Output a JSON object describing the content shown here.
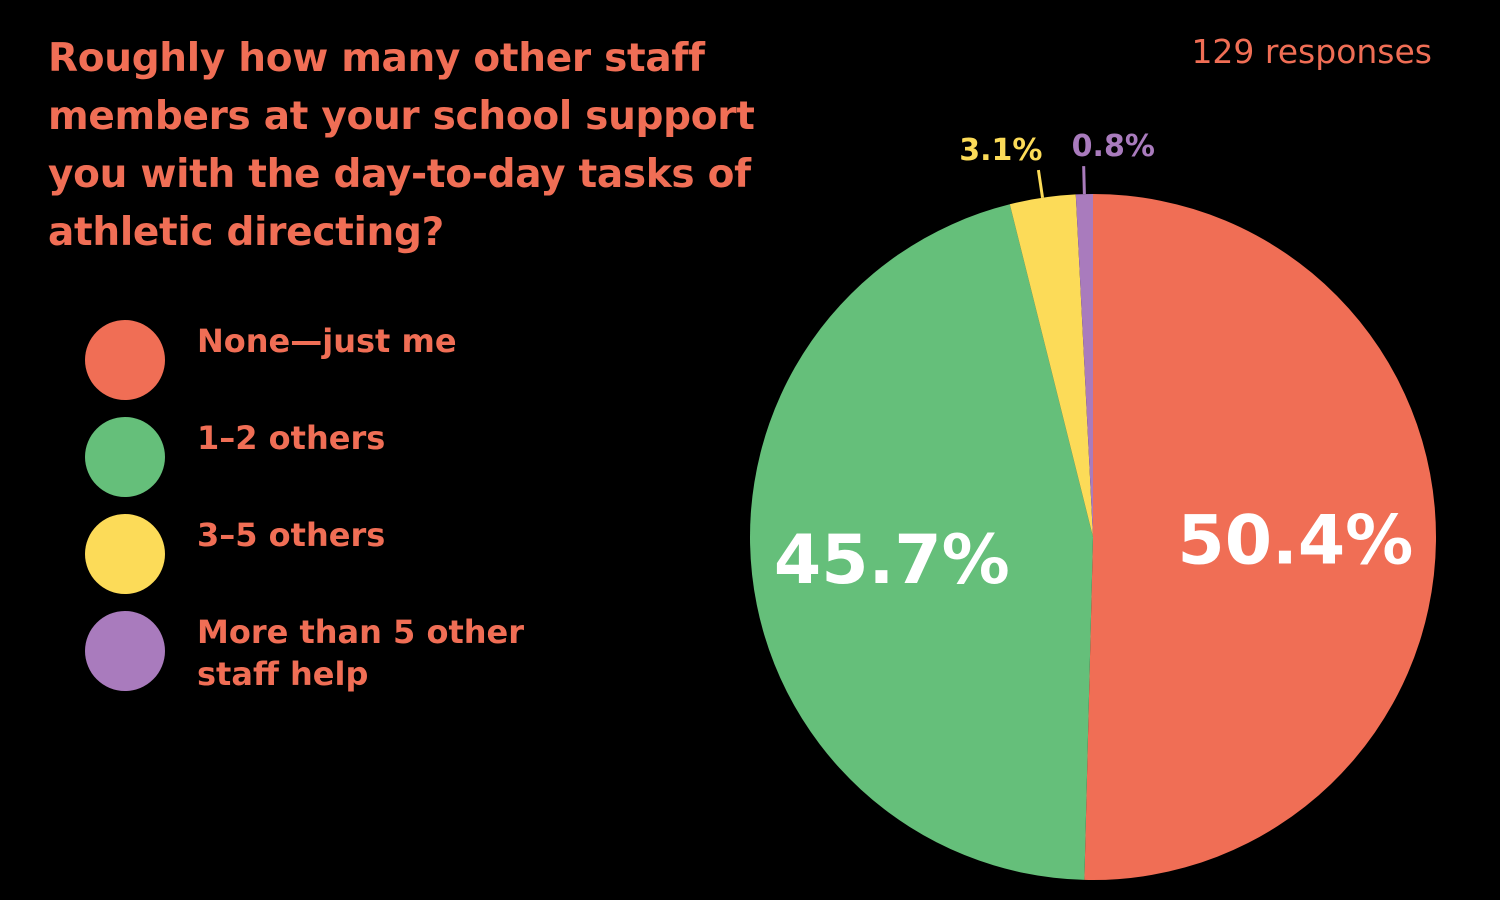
{
  "colors": {
    "accent": "#f06e55",
    "background": "#000000"
  },
  "header": {
    "responses": "129 responses"
  },
  "chart_data": {
    "type": "pie",
    "title": "Roughly how many other staff members at your school support you with the day-to-day tasks of athletic directing?",
    "categories": [
      "None—just me",
      "1–2 others",
      "3–5 others",
      "More than 5 other staff help"
    ],
    "values": [
      50.4,
      45.7,
      3.1,
      0.8
    ],
    "value_labels": [
      "50.4%",
      "45.7%",
      "3.1%",
      "0.8%"
    ],
    "colors": [
      "#f06e55",
      "#65bf7a",
      "#fcdb58",
      "#a97bbd"
    ],
    "legend": "left"
  }
}
